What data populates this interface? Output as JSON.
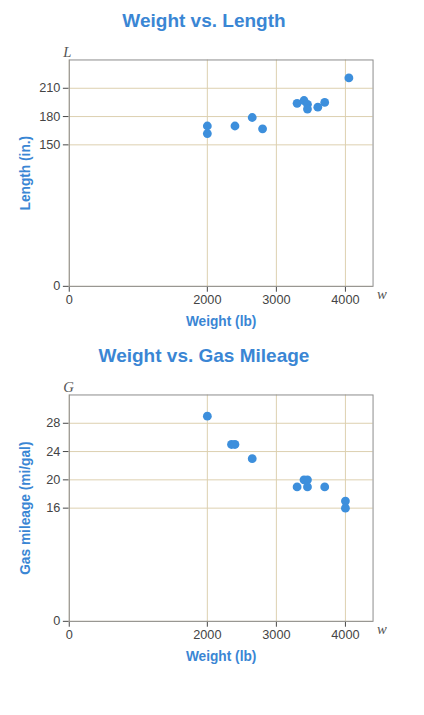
{
  "chart_data": [
    {
      "type": "scatter",
      "title": "Weight vs. Length",
      "x_label": "Weight (lb)",
      "y_label": "Length (in.)",
      "x_symbol": "w",
      "y_symbol": "L",
      "x": [
        2000,
        2000,
        2400,
        2650,
        2800,
        3300,
        3400,
        3450,
        3450,
        3600,
        3700,
        4050
      ],
      "values": [
        170,
        162,
        170,
        179,
        167,
        194,
        197,
        193,
        188,
        190,
        195,
        221
      ],
      "color": "#3d8fdc",
      "xlim": [
        0,
        4400
      ],
      "xticks": [
        0,
        2000,
        3000,
        4000
      ],
      "ylim": [
        0,
        240
      ],
      "yticks": [
        0,
        150,
        180,
        210
      ],
      "grid": true
    },
    {
      "type": "scatter",
      "title": "Weight vs. Gas Mileage",
      "x_label": "Weight (lb)",
      "y_label": "Gas mileage (mi/gal)",
      "x_symbol": "w",
      "y_symbol": "G",
      "x": [
        2000,
        2350,
        2400,
        2650,
        3300,
        3400,
        3450,
        3450,
        3700,
        4000,
        4000
      ],
      "values": [
        29,
        25,
        25,
        23,
        19,
        20,
        20,
        19,
        19,
        17,
        16
      ],
      "color": "#3d8fdc",
      "xlim": [
        0,
        4400
      ],
      "xticks": [
        0,
        2000,
        3000,
        4000
      ],
      "ylim": [
        0,
        32
      ],
      "yticks": [
        0,
        16,
        20,
        24,
        28
      ],
      "grid": true
    }
  ]
}
